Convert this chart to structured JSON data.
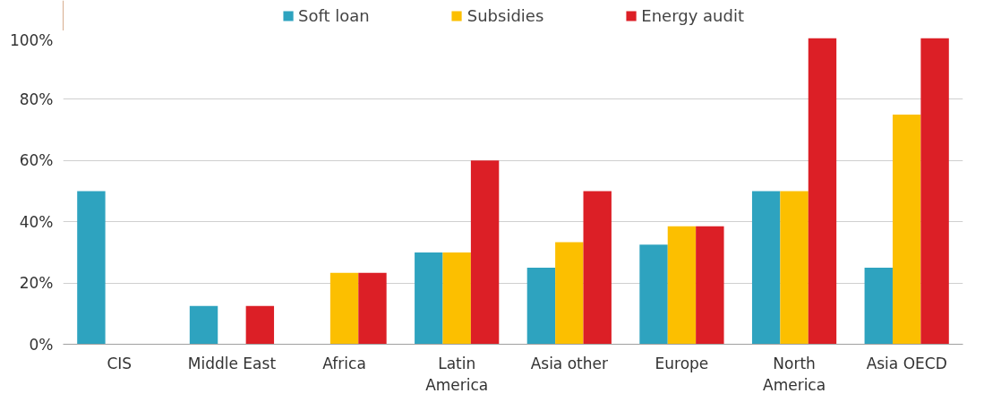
{
  "chart_data": {
    "type": "bar",
    "categories": [
      "CIS",
      "Middle East",
      "Africa",
      "Latin America",
      "Asia other",
      "Europe",
      "North America",
      "Asia OECD"
    ],
    "series": [
      {
        "name": "Soft loan",
        "color": "#2ea3bf",
        "values": [
          50,
          12.5,
          0,
          30,
          25,
          32.5,
          50,
          25
        ]
      },
      {
        "name": "Subsidies",
        "color": "#fcbf00",
        "values": [
          0,
          0,
          23.3,
          30,
          33.3,
          38.5,
          50,
          75
        ]
      },
      {
        "name": "Energy audit",
        "color": "#dc1f26",
        "values": [
          0,
          12.5,
          23.3,
          60,
          50,
          38.5,
          100,
          100
        ]
      }
    ],
    "ylim": [
      0,
      100
    ],
    "yticks": [
      {
        "value": 0,
        "label": "0%"
      },
      {
        "value": 20,
        "label": "20%"
      },
      {
        "value": 40,
        "label": "40%"
      },
      {
        "value": 60,
        "label": "60%"
      },
      {
        "value": 80,
        "label": "80%"
      },
      {
        "value": 100,
        "label": "100%"
      }
    ],
    "grid": "y",
    "legend": "top"
  }
}
